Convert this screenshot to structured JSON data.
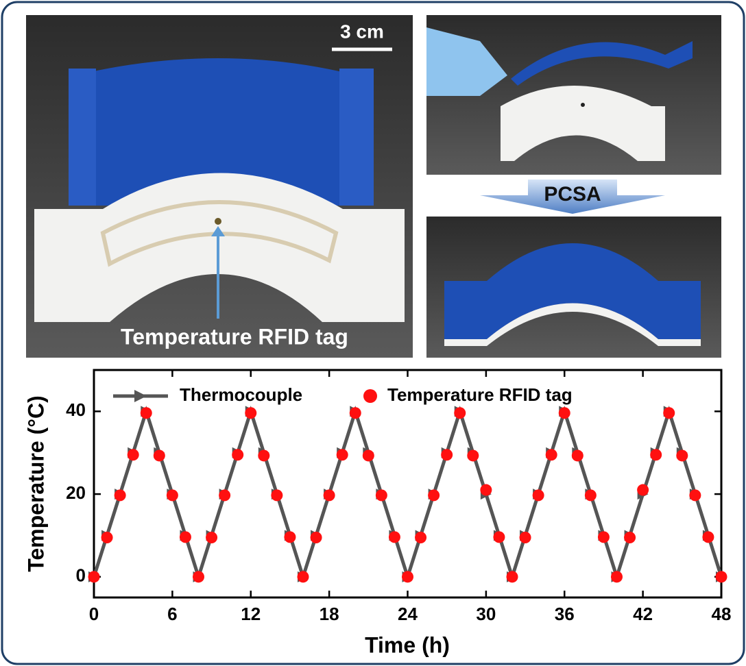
{
  "chart_data": {
    "type": "line",
    "x_label": "Time (h)",
    "y_label": "Temperature (°C)",
    "x": [
      0,
      1,
      2,
      3,
      4,
      5,
      6,
      7,
      8,
      9,
      10,
      11,
      12,
      13,
      14,
      15,
      16,
      17,
      18,
      19,
      20,
      21,
      22,
      23,
      24,
      25,
      26,
      27,
      28,
      29,
      30,
      31,
      32,
      33,
      34,
      35,
      36,
      37,
      38,
      39,
      40,
      41,
      42,
      43,
      44,
      45,
      46,
      47,
      48
    ],
    "series": [
      {
        "name": "Thermocouple",
        "color": "#555555",
        "marker": "triangle",
        "values": [
          0,
          10,
          20,
          30,
          40,
          30,
          20,
          10,
          0,
          10,
          20,
          30,
          40,
          30,
          20,
          10,
          0,
          10,
          20,
          30,
          40,
          30,
          20,
          10,
          0,
          10,
          20,
          30,
          40,
          30,
          20,
          10,
          0,
          10,
          20,
          30,
          40,
          30,
          20,
          10,
          0,
          10,
          20,
          30,
          40,
          30,
          20,
          10,
          0
        ]
      },
      {
        "name": "Temperature RFID tag",
        "color": "#ff1010",
        "marker": "circle",
        "values": [
          0,
          9.5,
          19.7,
          29.5,
          39.6,
          29.3,
          19.7,
          9.6,
          0,
          9.5,
          19.7,
          29.5,
          39.6,
          29.3,
          19.7,
          9.6,
          0,
          9.5,
          19.7,
          29.5,
          39.6,
          29.3,
          19.7,
          9.6,
          0,
          9.5,
          19.7,
          29.5,
          39.6,
          29.3,
          21,
          9.6,
          0,
          9.5,
          19.7,
          29.5,
          39.6,
          29.3,
          19.7,
          9.6,
          0,
          9.5,
          21,
          29.5,
          39.6,
          29.3,
          19.7,
          9.6,
          0
        ]
      }
    ],
    "xlim": [
      0,
      48
    ],
    "ylim": [
      -5,
      50
    ],
    "xticks": [
      0,
      6,
      12,
      18,
      24,
      30,
      36,
      42,
      48
    ],
    "yticks": [
      0,
      20,
      40
    ]
  },
  "photos": {
    "scale_bar": "3 cm",
    "tag_label": "Temperature RFID tag",
    "process_label": "PCSA"
  }
}
